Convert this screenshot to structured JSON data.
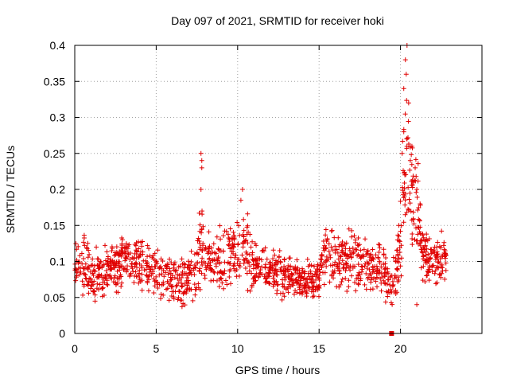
{
  "chart_data": {
    "type": "scatter",
    "title": "Day 097 of 2021, SRMTID for receiver hoki",
    "xlabel": "GPS time / hours",
    "ylabel": "SRMTID / TECUs",
    "xlim": [
      0,
      25
    ],
    "ylim": [
      0,
      0.4
    ],
    "x_ticks": [
      0,
      5,
      10,
      15,
      20
    ],
    "x_tick_labels": [
      "0",
      "5",
      "10",
      "15",
      "20"
    ],
    "y_ticks": [
      0,
      0.05,
      0.1,
      0.15,
      0.2,
      0.25,
      0.3,
      0.35,
      0.4
    ],
    "y_tick_labels": [
      "0",
      "0.05",
      "0.1",
      "0.15",
      "0.2",
      "0.25",
      "0.3",
      "0.35",
      "0.4"
    ],
    "grid": true,
    "marker": "plus",
    "color": "#e00000",
    "x_data_range": [
      0,
      22.8
    ],
    "envelope": {
      "x": [
        0,
        0.5,
        1,
        2,
        3,
        4,
        5,
        6,
        7,
        7.5,
        7.8,
        8,
        9,
        10,
        10.5,
        11,
        12,
        13,
        14,
        15,
        15.5,
        16,
        17,
        18,
        19,
        19.5,
        20,
        20.3,
        20.5,
        21,
        21.5,
        22,
        22.5,
        22.8
      ],
      "min": [
        0.05,
        0.04,
        0.04,
        0.035,
        0.04,
        0.035,
        0.04,
        0.03,
        0.025,
        0.03,
        0.05,
        0.05,
        0.04,
        0.04,
        0.05,
        0.04,
        0.04,
        0.04,
        0.035,
        0.04,
        0.05,
        0.05,
        0.04,
        0.04,
        0.03,
        0.02,
        0.04,
        0.08,
        0.09,
        0.08,
        0.05,
        0.05,
        0.06,
        0.07
      ],
      "max": [
        0.13,
        0.16,
        0.13,
        0.14,
        0.16,
        0.15,
        0.14,
        0.12,
        0.13,
        0.14,
        0.25,
        0.15,
        0.16,
        0.18,
        0.2,
        0.14,
        0.13,
        0.12,
        0.11,
        0.12,
        0.18,
        0.15,
        0.16,
        0.15,
        0.14,
        0.11,
        0.2,
        0.4,
        0.35,
        0.27,
        0.16,
        0.14,
        0.15,
        0.16
      ]
    },
    "outliers": [
      {
        "x": 7.75,
        "y": 0.25
      },
      {
        "x": 7.8,
        "y": 0.24
      },
      {
        "x": 7.8,
        "y": 0.23
      },
      {
        "x": 7.75,
        "y": 0.2
      },
      {
        "x": 10.3,
        "y": 0.2
      },
      {
        "x": 10.2,
        "y": 0.185
      },
      {
        "x": 20.4,
        "y": 0.4
      },
      {
        "x": 20.3,
        "y": 0.38
      },
      {
        "x": 20.35,
        "y": 0.36
      },
      {
        "x": 20.2,
        "y": 0.34
      },
      {
        "x": 20.5,
        "y": 0.32
      },
      {
        "x": 20.2,
        "y": 0.28
      },
      {
        "x": 20.4,
        "y": 0.27
      },
      {
        "x": 20.7,
        "y": 0.26
      },
      {
        "x": 20.6,
        "y": 0.24
      },
      {
        "x": 20.9,
        "y": 0.23
      },
      {
        "x": 21.0,
        "y": 0.2
      },
      {
        "x": 20.1,
        "y": 0.25
      },
      {
        "x": 20.8,
        "y": 0.21
      },
      {
        "x": 21.2,
        "y": 0.18
      },
      {
        "x": 21.0,
        "y": 0.04
      }
    ],
    "special_point": {
      "x": 19.45,
      "y": 0.0
    }
  }
}
